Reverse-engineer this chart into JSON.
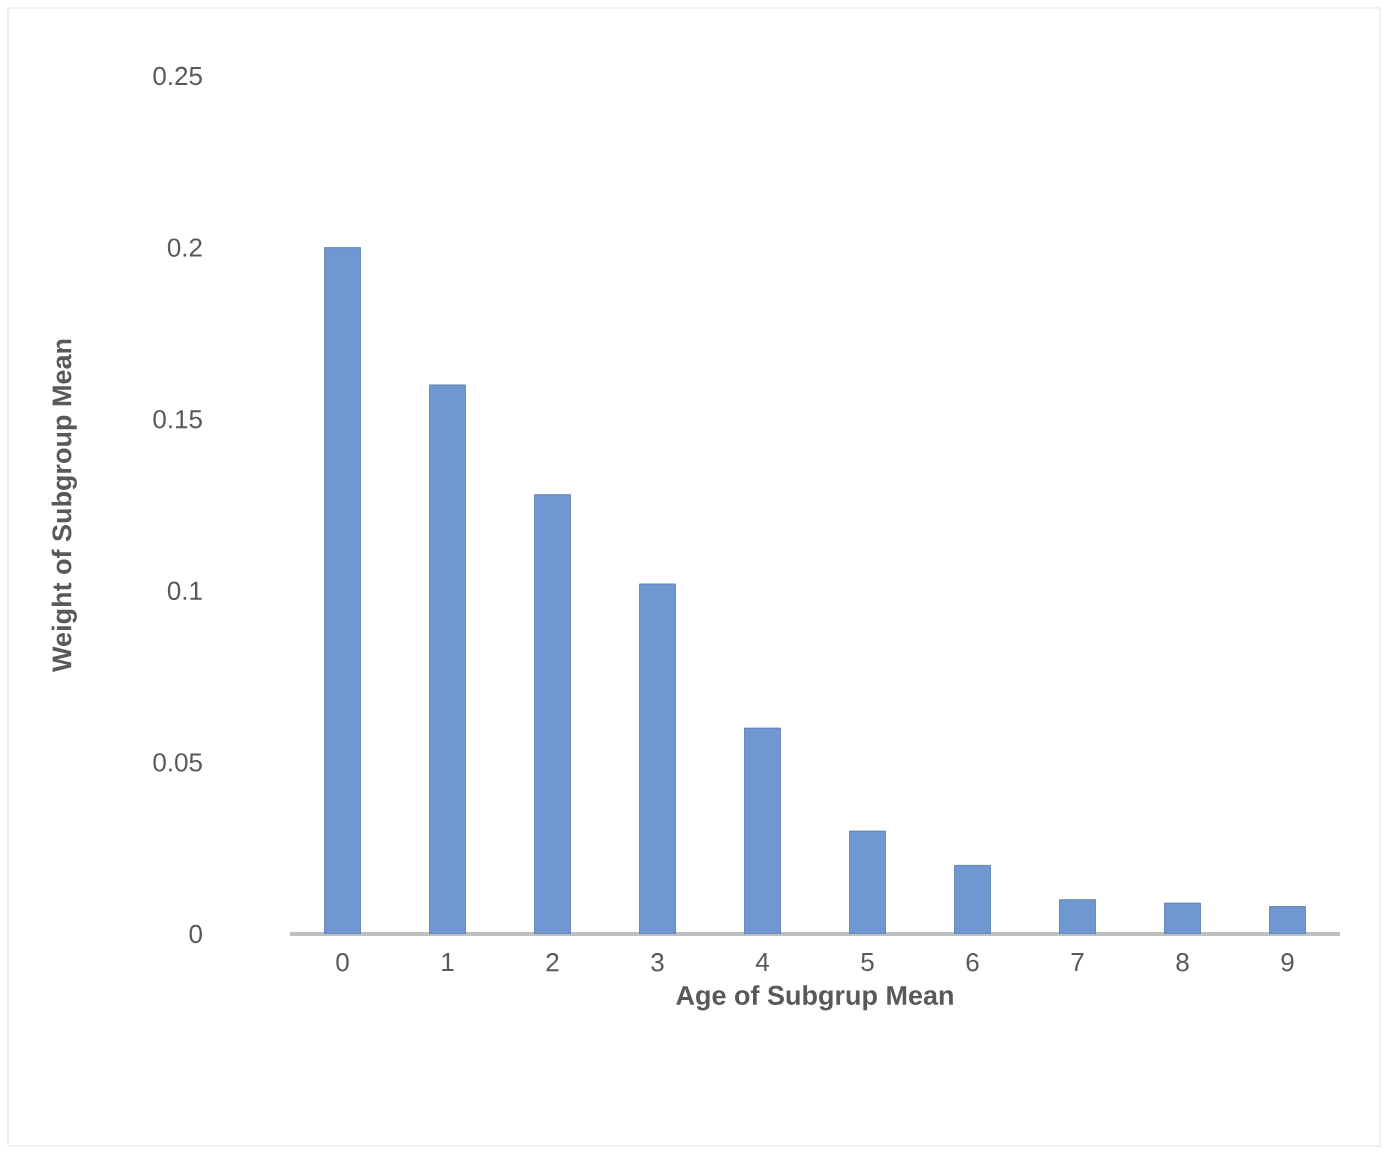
{
  "chart_data": {
    "type": "bar",
    "xlabel": "Age of Subgrup Mean",
    "ylabel": "Weight of Subgroup Mean",
    "categories": [
      "0",
      "1",
      "2",
      "3",
      "4",
      "5",
      "6",
      "7",
      "8",
      "9"
    ],
    "values": [
      0.2,
      0.16,
      0.128,
      0.102,
      0.06,
      0.03,
      0.02,
      0.01,
      0.009,
      0.008
    ],
    "color": "#6f98d2",
    "ylim": [
      0,
      0.25
    ],
    "yticks": [
      0,
      0.05,
      0.1,
      0.15,
      0.2,
      0.25
    ],
    "grid": false
  }
}
